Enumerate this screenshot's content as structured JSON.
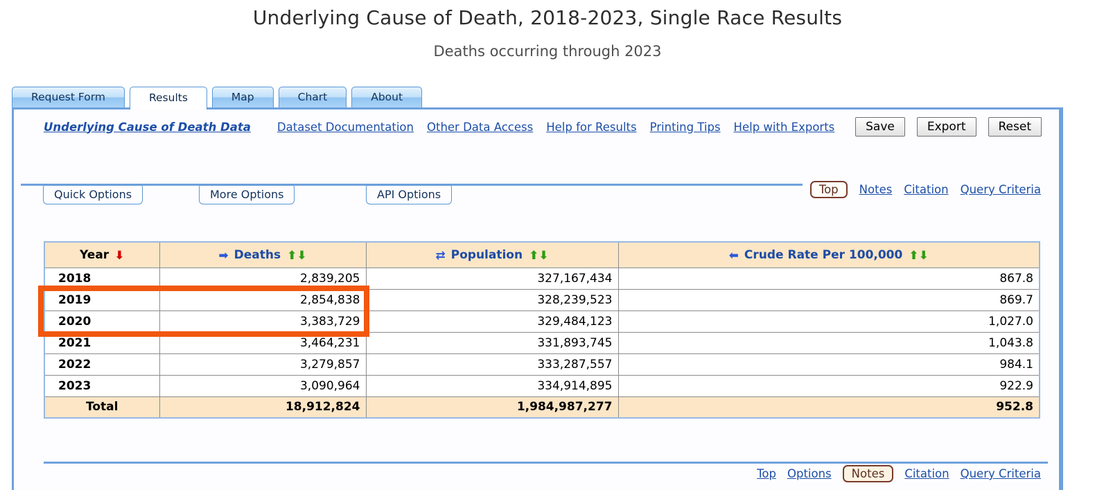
{
  "header": {
    "title": "Underlying Cause of Death, 2018-2023, Single Race Results",
    "subtitle": "Deaths occurring through 2023"
  },
  "tabs": {
    "request_form": "Request Form",
    "results": "Results",
    "map": "Map",
    "chart": "Chart",
    "about": "About",
    "active_tab": "Results"
  },
  "toolbar": {
    "dataset_link": "Underlying Cause of Death Data",
    "dataset_documentation": "Dataset Documentation",
    "other_data_access": "Other Data Access",
    "help_for_results": "Help for Results",
    "printing_tips": "Printing Tips",
    "help_with_exports": "Help with Exports",
    "save": "Save",
    "export": "Export",
    "reset": "Reset"
  },
  "options_bar": {
    "quick_options": "Quick Options",
    "more_options": "More Options",
    "api_options": "API Options",
    "top": "Top",
    "notes": "Notes",
    "citation": "Citation",
    "query_criteria": "Query Criteria"
  },
  "table": {
    "headers": {
      "year": "Year",
      "deaths": "Deaths",
      "population": "Population",
      "crude_rate": "Crude Rate Per 100,000"
    },
    "icons": {
      "year_sort_desc": "⬇",
      "move_right": "➡",
      "move_swap": "⇄",
      "move_left": "⬅",
      "sort_asc": "⬆",
      "sort_desc": "⬇"
    },
    "rows": [
      {
        "year": "2018",
        "deaths": "2,839,205",
        "population": "327,167,434",
        "crude_rate": "867.8"
      },
      {
        "year": "2019",
        "deaths": "2,854,838",
        "population": "328,239,523",
        "crude_rate": "869.7"
      },
      {
        "year": "2020",
        "deaths": "3,383,729",
        "population": "329,484,123",
        "crude_rate": "1,027.0"
      },
      {
        "year": "2021",
        "deaths": "3,464,231",
        "population": "331,893,745",
        "crude_rate": "1,043.8"
      },
      {
        "year": "2022",
        "deaths": "3,279,857",
        "population": "333,287,557",
        "crude_rate": "984.1"
      },
      {
        "year": "2023",
        "deaths": "3,090,964",
        "population": "334,914,895",
        "crude_rate": "922.9"
      }
    ],
    "total": {
      "label": "Total",
      "deaths": "18,912,824",
      "population": "1,984,987,277",
      "crude_rate": "952.8"
    }
  },
  "highlight": {
    "description": "orange box around Year and Deaths cells of rows 2019 and 2020",
    "color": "#F2570E"
  },
  "footer": {
    "top": "Top",
    "options": "Options",
    "notes": "Notes",
    "citation": "Citation",
    "query_criteria": "Query Criteria"
  },
  "colors": {
    "rule_blue": "#6FA1DD",
    "tab_border": "#5B97D5",
    "link_blue": "#1D4FA8",
    "table_header_bg": "#FCE6C6",
    "maroon_badge_border": "#7A3B2B",
    "green_arrow": "#2E9C10",
    "red_arrow": "#D40000",
    "blue_arrow": "#2B59D8",
    "highlight_orange": "#F2570E"
  }
}
